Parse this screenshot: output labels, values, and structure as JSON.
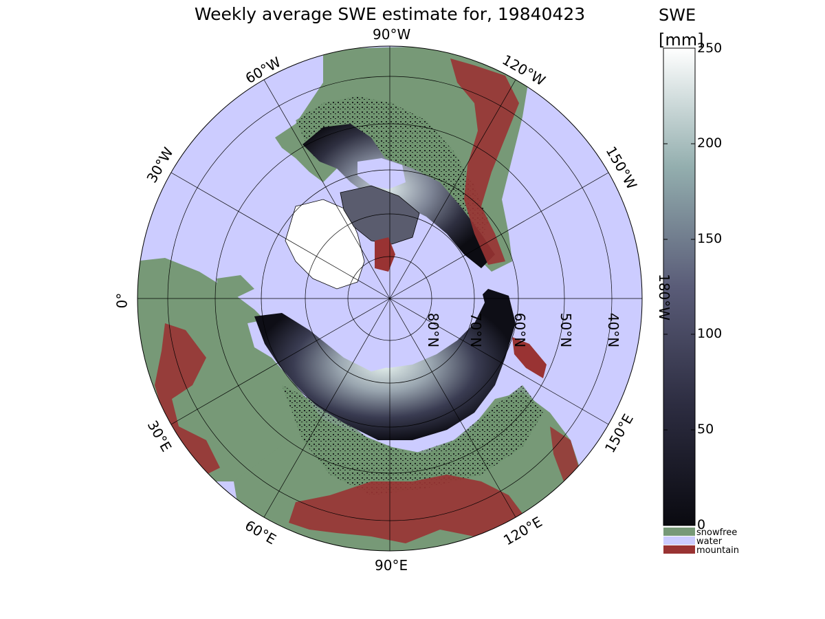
{
  "title": "Weekly average SWE estimate for, 19840423",
  "colorbar": {
    "title_line1": "SWE",
    "title_line2": "[mm]",
    "ticks": [
      "0",
      "50",
      "100",
      "150",
      "200",
      "250"
    ],
    "range": [
      0,
      250
    ],
    "classes": [
      {
        "label": "snowfree",
        "color": "#779977"
      },
      {
        "label": "water",
        "color": "#ccccff"
      },
      {
        "label": "mountain",
        "color": "#993333"
      }
    ]
  },
  "map": {
    "projection": "north polar stereographic",
    "longitude_labels": [
      {
        "key": "lon-90w",
        "text": "90°W"
      },
      {
        "key": "lon-60w",
        "text": "60°W"
      },
      {
        "key": "lon-120w",
        "text": "120°W"
      },
      {
        "key": "lon-30w",
        "text": "30°W"
      },
      {
        "key": "lon-150w",
        "text": "150°W"
      },
      {
        "key": "lon-0",
        "text": "0°"
      },
      {
        "key": "lon-180w",
        "text": "180°W"
      },
      {
        "key": "lon-30e",
        "text": "30°E"
      },
      {
        "key": "lon-150e",
        "text": "150°E"
      },
      {
        "key": "lon-60e",
        "text": "60°E"
      },
      {
        "key": "lon-120e",
        "text": "120°E"
      },
      {
        "key": "lon-90e",
        "text": "90°E"
      }
    ],
    "latitude_labels": [
      {
        "key": "lat-80n",
        "text": "80°N"
      },
      {
        "key": "lat-70n",
        "text": "70°N"
      },
      {
        "key": "lat-60n",
        "text": "60°N"
      },
      {
        "key": "lat-50n",
        "text": "50°N"
      },
      {
        "key": "lat-40n",
        "text": "40°N"
      }
    ],
    "colors": {
      "water": "#ccccff",
      "snowfree": "#779977",
      "mountain": "#993333",
      "swe_low": "#0a0a10",
      "swe_high": "#f4fbf9"
    }
  }
}
